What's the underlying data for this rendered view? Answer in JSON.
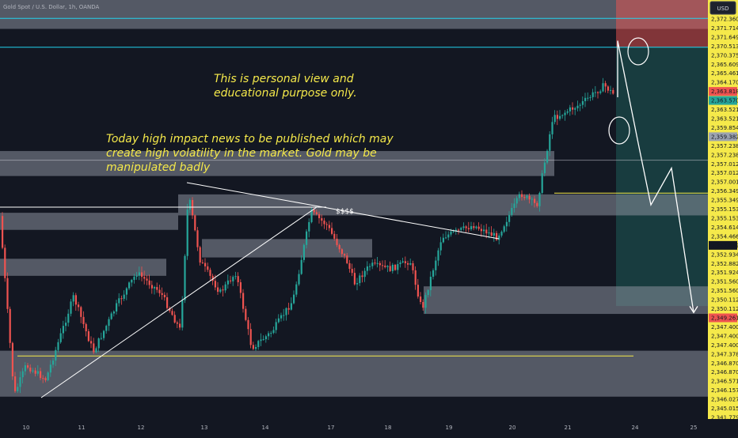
{
  "header": {
    "symbol": "Gold Spot / U.S. Dollar, 1h, OANDA",
    "currency": "USD"
  },
  "annotations": {
    "disclaimer": [
      "This is personal view and",
      "educational purpose only."
    ],
    "news": [
      "Today high impact news  to be published  which may",
      "create high volatility in the market. Gold may be",
      "manipulated badly"
    ],
    "liquidity": "$$$$"
  },
  "colors": {
    "background": "#131722",
    "bullish": "#26a69a",
    "bearish": "#ef5350",
    "price_axis": "#f5e94a",
    "cyan_line": "#22d3ee",
    "zone_gray": "#8a8f9c",
    "target_zone": "#ef5350",
    "projection": "#ffffff",
    "annotation": "#f5e94a"
  },
  "chart_data": {
    "type": "candlestick",
    "title": "Gold Spot / U.S. Dollar, 1h, OANDA",
    "currency": "USD",
    "y_axis": {
      "range": [
        2341.3,
        2372.6
      ],
      "tick_labels": [
        "2,372.360",
        "2,371.714",
        "2,371.649",
        "2,370.513",
        "2,370.375",
        "2,365.609",
        "2,365.461",
        "2,364.170",
        "2,363.818",
        "2,363.570",
        "2,363.521",
        "2,363.521",
        "2,359.854",
        "2,359.382",
        "2,357.238",
        "2,357.238",
        "2,357.012",
        "2,357.012",
        "2,357.001",
        "2,356.349",
        "2,355.349",
        "2,355.153",
        "2,355.153",
        "2,354.614",
        "2,354.466",
        "2,353.652",
        "2,352.934",
        "2,352.882",
        "2,351.924",
        "2,351.560",
        "2,351.560",
        "2,350.112",
        "2,350.112",
        "2,349.261",
        "2,347.400",
        "2,347.400",
        "2,347.400",
        "2,347.378",
        "2,346.870",
        "2,346.870",
        "2,346.571",
        "2,346.157",
        "2,346.027",
        "2,345.015",
        "2,341.779"
      ],
      "highlighted": [
        {
          "label": "2,363.818",
          "color": "#ef5350"
        },
        {
          "label": "2,363.570",
          "color": "#26a69a"
        },
        {
          "label": "2,359.382",
          "color": "#9ca3af"
        },
        {
          "label": "2,353.652",
          "color": "#131722"
        },
        {
          "label": "2,349.261",
          "color": "#ef5350"
        }
      ]
    },
    "x_axis": {
      "tick_labels": [
        "10",
        "11",
        "12",
        "13",
        "14",
        "17",
        "18",
        "19",
        "20",
        "21",
        "24",
        "25"
      ]
    },
    "candles": [],
    "levels": [
      2371.2,
      2369.0,
      2360.4,
      2357.9,
      2345.5
    ],
    "zones": [
      {
        "from": 2370.4,
        "to": 2372.6,
        "kind": "gray"
      },
      {
        "from": 2359.2,
        "to": 2361.1,
        "kind": "gray"
      },
      {
        "from": 2356.2,
        "to": 2357.8,
        "kind": "gray"
      },
      {
        "from": 2355.1,
        "to": 2356.4,
        "kind": "gray"
      },
      {
        "from": 2353.0,
        "to": 2354.4,
        "kind": "gray"
      },
      {
        "from": 2351.6,
        "to": 2352.9,
        "kind": "gray"
      },
      {
        "from": 2348.7,
        "to": 2350.8,
        "kind": "gray"
      },
      {
        "from": 2342.4,
        "to": 2345.9,
        "kind": "gray"
      },
      {
        "from": 2369.0,
        "to": 2372.6,
        "kind": "target"
      },
      {
        "from": 2349.3,
        "to": 2369.0,
        "kind": "position"
      }
    ],
    "projection_path": [
      2365.2,
      2369.5,
      2361.7,
      2357.0,
      2359.8,
      2348.8
    ]
  }
}
